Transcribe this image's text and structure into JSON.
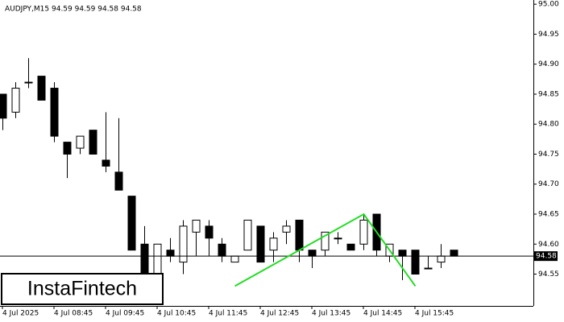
{
  "chart_data": {
    "type": "candlestick",
    "title": "AUDJPY,M15  94.59 94.59 94.58 94.58",
    "categories": [
      "4 Jul 2025",
      null,
      null,
      null,
      "4 Jul 08:45",
      null,
      null,
      null,
      "4 Jul 09:45",
      null,
      null,
      null,
      "4 Jul 10:45",
      null,
      null,
      null,
      "4 Jul 11:45",
      null,
      null,
      null,
      "4 Jul 12:45",
      null,
      null,
      null,
      "4 Jul 13:45",
      null,
      null,
      null,
      "4 Jul 14:45",
      null,
      null,
      null,
      "4 Jul 15:45",
      null,
      null,
      null
    ],
    "series": [
      {
        "open": [
          94.85,
          94.82,
          94.87,
          94.88,
          94.86,
          94.77,
          94.76,
          94.79,
          94.74,
          94.72,
          94.68,
          94.6,
          94.55,
          94.59,
          94.57,
          94.62,
          94.63,
          94.6,
          94.57,
          94.59,
          94.63,
          94.59,
          94.62,
          94.64,
          94.59,
          94.59,
          94.61,
          94.6,
          94.6,
          94.65,
          94.58,
          94.59,
          94.59,
          94.56,
          94.57,
          94.59
        ],
        "high": [
          94.85,
          94.87,
          94.91,
          94.88,
          94.87,
          94.77,
          94.78,
          94.79,
          94.82,
          94.81,
          94.68,
          94.63,
          94.6,
          94.61,
          94.64,
          94.64,
          94.64,
          94.61,
          94.58,
          94.64,
          94.63,
          94.62,
          94.64,
          94.64,
          94.59,
          94.62,
          94.62,
          94.6,
          94.65,
          94.65,
          94.6,
          94.59,
          94.59,
          94.58,
          94.6,
          94.59
        ],
        "low": [
          94.79,
          94.81,
          94.86,
          94.84,
          94.77,
          94.71,
          94.75,
          94.75,
          94.72,
          94.69,
          94.59,
          94.54,
          94.54,
          94.57,
          94.55,
          94.58,
          94.58,
          94.57,
          94.57,
          94.59,
          94.57,
          94.57,
          94.6,
          94.57,
          94.56,
          94.58,
          94.6,
          94.59,
          94.59,
          94.58,
          94.57,
          94.54,
          94.55,
          94.56,
          94.56,
          94.58
        ],
        "close": [
          94.81,
          94.86,
          94.87,
          94.84,
          94.78,
          94.75,
          94.78,
          94.75,
          94.73,
          94.69,
          94.59,
          94.55,
          94.6,
          94.58,
          94.63,
          94.64,
          94.61,
          94.58,
          94.58,
          94.64,
          94.57,
          94.61,
          94.63,
          94.59,
          94.58,
          94.62,
          94.61,
          94.59,
          94.64,
          94.59,
          94.6,
          94.58,
          94.55,
          94.56,
          94.58,
          94.58
        ],
        "up_color": "#ffffff",
        "down_color": "#000000"
      }
    ],
    "pattern": {
      "color": "#22dd22",
      "x": [
        18,
        28,
        32
      ],
      "values": [
        94.53,
        94.65,
        94.53
      ]
    },
    "last_price": {
      "value": 94.58,
      "label": "94.58"
    },
    "ylim": [
      94.497,
      95.007
    ],
    "yticks": [
      {
        "value": 95,
        "label": "95.00"
      },
      94.95,
      {
        "value": 94.9,
        "label": "94.90"
      },
      94.85,
      {
        "value": 94.8,
        "label": "94.80"
      },
      94.75,
      {
        "value": 94.7,
        "label": "94.70"
      },
      94.65,
      {
        "value": 94.6,
        "label": "94.60"
      },
      94.55
    ],
    "logo": "InstaFintech"
  }
}
